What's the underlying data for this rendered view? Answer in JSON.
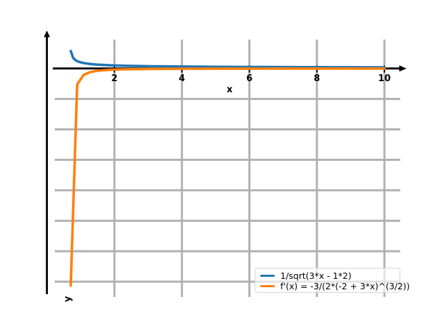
{
  "chart_data": {
    "type": "line",
    "title": "",
    "xlabel": "x",
    "ylabel": "y",
    "x_ticks": [
      2,
      4,
      6,
      8,
      10
    ],
    "y_gridlines": [
      -5,
      -10,
      -15,
      -20,
      -25,
      -30,
      -35
    ],
    "xlim": [
      0.24,
      10.47
    ],
    "ylim": [
      -37.5,
      4.75
    ],
    "grid": true,
    "grid_color": "#b0b0b0",
    "axis_color": "#000000",
    "legend_position": "lower right",
    "series": [
      {
        "name": "1/sqrt(3*x - 1*2)",
        "color": "#1f77b4",
        "x": [
          0.707,
          0.78,
          0.85,
          0.897,
          0.95,
          1.086,
          1.276,
          1.466,
          1.655,
          1.845,
          2.034,
          2.224,
          2.414,
          2.603,
          2.793,
          2.983,
          3.172,
          3.362,
          3.552,
          3.741,
          3.931,
          4.121,
          4.31,
          4.5,
          5,
          5.5,
          6,
          6.5,
          7,
          7.5,
          8,
          8.5,
          9,
          9.5,
          10
        ],
        "y": [
          2.874,
          1.715,
          1.348,
          1.203,
          1.085,
          0.892,
          0.74,
          0.646,
          0.581,
          0.532,
          0.494,
          0.463,
          0.437,
          0.415,
          0.396,
          0.379,
          0.365,
          0.352,
          0.34,
          0.329,
          0.32,
          0.311,
          0.303,
          0.295,
          0.277,
          0.263,
          0.25,
          0.239,
          0.229,
          0.221,
          0.213,
          0.206,
          0.2,
          0.194,
          0.189
        ]
      },
      {
        "name": "f'(x) = -3/(2*(-2 + 3*x)^(3/2))",
        "color": "#ff7f0e",
        "x": [
          0.707,
          0.897,
          1.086,
          1.276,
          1.466,
          1.655,
          1.845,
          2.034,
          2.224,
          2.414,
          2.603,
          2.793,
          2.983,
          3.172,
          3.362,
          3.552,
          3.741,
          3.931,
          4.121,
          4.31,
          4.5,
          5,
          5.5,
          6,
          6.5,
          7,
          7.5,
          8,
          8.5,
          9,
          9.5,
          10
        ],
        "y": [
          -35.64,
          -2.611,
          -1.063,
          -0.607,
          -0.404,
          -0.294,
          -0.226,
          -0.181,
          -0.149,
          -0.125,
          -0.107,
          -0.093,
          -0.082,
          -0.073,
          -0.065,
          -0.059,
          -0.054,
          -0.049,
          -0.045,
          -0.042,
          -0.038,
          -0.032,
          -0.027,
          -0.023,
          -0.021,
          -0.018,
          -0.016,
          -0.015,
          -0.013,
          -0.012,
          -0.011,
          -0.01
        ]
      }
    ]
  }
}
